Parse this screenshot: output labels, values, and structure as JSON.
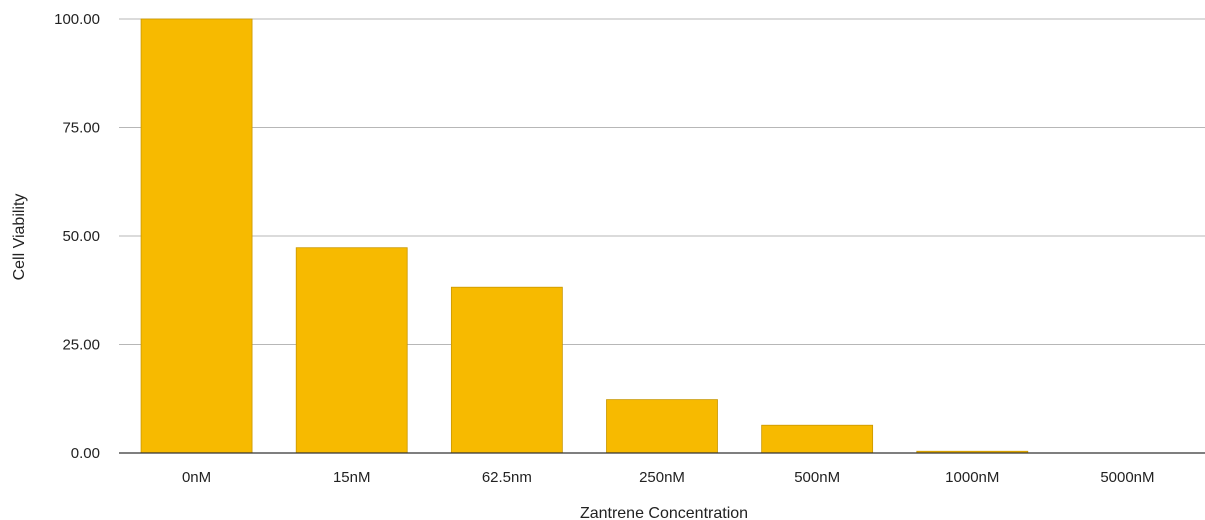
{
  "chart_data": {
    "type": "bar",
    "title": "",
    "xlabel": "Zantrene Concentration",
    "ylabel": "Cell Viability",
    "categories": [
      "0nM",
      "15nM",
      "62.5nm",
      "250nM",
      "500nM",
      "1000nM",
      "5000nM"
    ],
    "values": [
      100.0,
      47.3,
      38.2,
      12.3,
      6.4,
      0.4,
      0.0
    ],
    "ylim": [
      0,
      100
    ],
    "yticks": [
      0,
      25,
      50,
      75,
      100
    ],
    "ytick_labels": [
      "0.00",
      "25.00",
      "50.00",
      "75.00",
      "100.00"
    ],
    "grid": true,
    "legend": "none",
    "colors": {
      "bar_fill": "#F7BA00",
      "bar_stroke": "#C99700",
      "gridline": "#B7B7B7",
      "baseline": "#333333",
      "text": "#222222"
    }
  }
}
